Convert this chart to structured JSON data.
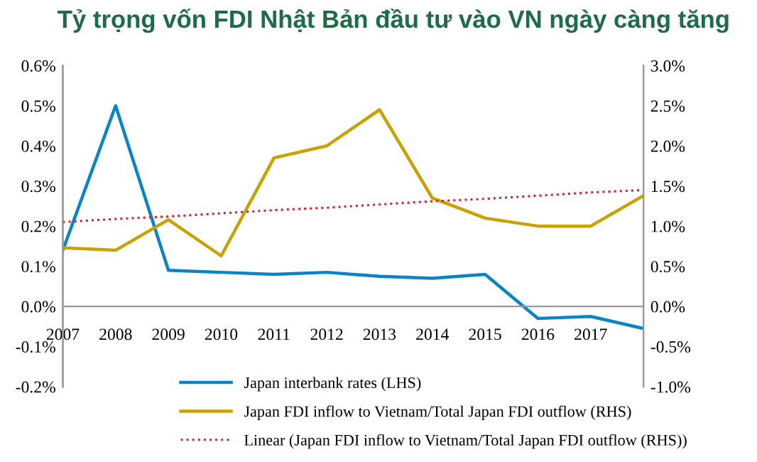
{
  "chart_data": {
    "type": "line",
    "title": "Tỷ trọng vốn FDI Nhật Bản đầu tư vào VN ngày càng tăng",
    "categories": [
      "2007",
      "2008",
      "2009",
      "2010",
      "2011",
      "2012",
      "2013",
      "2014",
      "2015",
      "2016",
      "2017",
      null
    ],
    "series": [
      {
        "name": "Japan interbank rates (LHS)",
        "color": "#0a84c8",
        "values": [
          0.14,
          0.5,
          0.09,
          0.085,
          0.08,
          0.085,
          0.075,
          0.07,
          0.08,
          -0.03,
          -0.025,
          -0.055
        ]
      },
      {
        "name": "Japan FDI inflow to Vietnam/Total Japan FDI outflow (RHS)",
        "color": "#c9a100",
        "axis": "y2",
        "values": [
          0.73,
          0.7,
          1.08,
          0.63,
          1.85,
          2.0,
          2.45,
          1.35,
          1.1,
          1.0,
          1.0,
          1.38
        ]
      },
      {
        "name": "Linear (Japan FDI inflow to Vietnam/Total Japan FDI outflow (RHS))",
        "color": "#e0202a",
        "axis": "y2",
        "line_style": "dotted",
        "values": [
          1.05,
          1.09,
          1.12,
          1.16,
          1.2,
          1.23,
          1.27,
          1.31,
          1.34,
          1.38,
          1.42,
          1.45
        ]
      }
    ],
    "ylim": [
      -0.2,
      0.6
    ],
    "yticks": [
      {
        "value": -0.2,
        "label": "-0.2%"
      },
      {
        "value": -0.1,
        "label": "-0.1%"
      },
      {
        "value": 0,
        "label": "0.0%"
      },
      {
        "value": 0.1,
        "label": "0.1%"
      },
      {
        "value": 0.2,
        "label": "0.2%"
      },
      {
        "value": 0.3,
        "label": "0.3%"
      },
      {
        "value": 0.4,
        "label": "0.4%"
      },
      {
        "value": 0.5,
        "label": "0.5%"
      },
      {
        "value": 0.6,
        "label": "0.6%"
      }
    ],
    "y2lim": [
      -1.0,
      3.0
    ],
    "y2ticks": [
      {
        "value": -1.0,
        "label": "-1.0%"
      },
      {
        "value": -0.5,
        "label": "-0.5%"
      },
      {
        "value": 0,
        "label": "0.0%"
      },
      {
        "value": 0.5,
        "label": "0.5%"
      },
      {
        "value": 1.0,
        "label": "1.0%"
      },
      {
        "value": 1.5,
        "label": "1.5%"
      },
      {
        "value": 2.0,
        "label": "2.0%"
      },
      {
        "value": 2.5,
        "label": "2.5%"
      },
      {
        "value": 3.0,
        "label": "3.0%"
      }
    ],
    "grid": false,
    "legend": "bottom",
    "marker": "none"
  }
}
